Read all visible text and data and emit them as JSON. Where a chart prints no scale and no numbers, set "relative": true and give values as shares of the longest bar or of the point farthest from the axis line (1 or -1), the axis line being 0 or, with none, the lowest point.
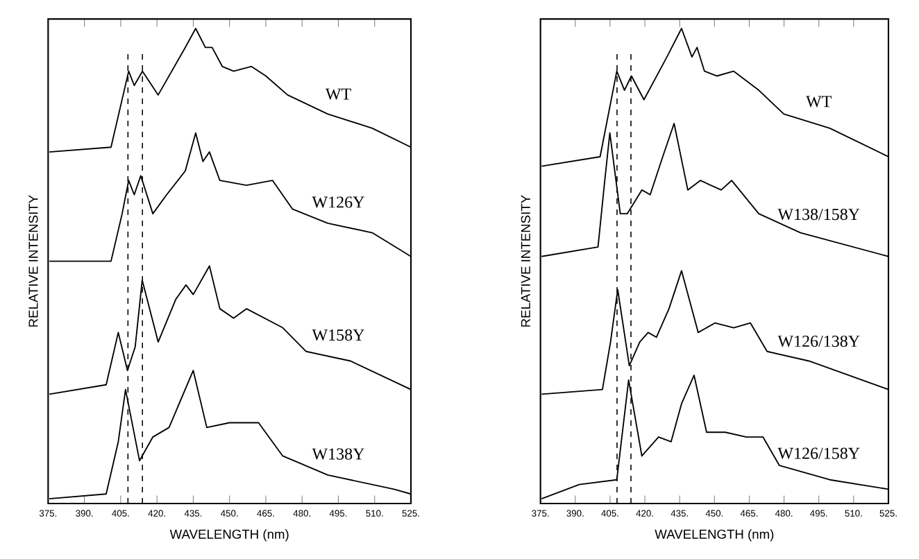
{
  "chart_data": [
    {
      "type": "line",
      "relative": true,
      "xlabel": "WAVELENGTH (nm)",
      "ylabel": "RELATIVE INTENSITY",
      "marker": "none",
      "line_style": "solid",
      "xlim": [
        375,
        525
      ],
      "xticks": [
        {
          "value": 375,
          "label": "375."
        },
        {
          "value": 390,
          "label": "390."
        },
        {
          "value": 405,
          "label": "405."
        },
        {
          "value": 420,
          "label": "420."
        },
        {
          "value": 435,
          "label": "435."
        },
        {
          "value": 450,
          "label": "450."
        },
        {
          "value": 465,
          "label": "465."
        },
        {
          "value": 480,
          "label": "480."
        },
        {
          "value": 495,
          "label": "495."
        },
        {
          "value": 510,
          "label": "510."
        },
        {
          "value": 525,
          "label": "525."
        }
      ],
      "ref_lines": [
        {
          "axis": "x",
          "value": 408,
          "line_style": "dashed"
        },
        {
          "axis": "x",
          "value": 414,
          "line_style": "dashed"
        }
      ],
      "series": [
        {
          "name": "WT",
          "color": "#000000",
          "x": [
            375.5,
            401,
            408.3,
            410.6,
            414,
            420.5,
            431.7,
            436,
            440,
            442.8,
            447,
            451.7,
            459,
            465,
            474,
            490.6,
            509,
            525
          ],
          "values": [
            0.74,
            0.75,
            0.91,
            0.88,
            0.91,
            0.86,
            0.96,
            1.0,
            0.96,
            0.96,
            0.92,
            0.91,
            0.92,
            0.9,
            0.86,
            0.82,
            0.79,
            0.75
          ]
        },
        {
          "name": "W126Y",
          "color": "#000000",
          "x": [
            375.5,
            401,
            405.6,
            408.3,
            410.6,
            413.3,
            418.3,
            424,
            431.7,
            436,
            439,
            441.7,
            446,
            457,
            467.8,
            476,
            490.6,
            509,
            525
          ],
          "values": [
            0.51,
            0.51,
            0.61,
            0.68,
            0.65,
            0.69,
            0.61,
            0.65,
            0.7,
            0.78,
            0.72,
            0.74,
            0.68,
            0.67,
            0.68,
            0.62,
            0.59,
            0.57,
            0.52
          ]
        },
        {
          "name": "W158Y",
          "color": "#000000",
          "x": [
            375.5,
            399,
            404,
            407.8,
            411,
            413.9,
            420.5,
            427.8,
            432,
            435,
            441.7,
            446,
            451.7,
            457,
            472,
            481.7,
            500,
            525
          ],
          "values": [
            0.23,
            0.25,
            0.36,
            0.28,
            0.33,
            0.47,
            0.34,
            0.43,
            0.46,
            0.44,
            0.5,
            0.41,
            0.39,
            0.41,
            0.37,
            0.32,
            0.3,
            0.24
          ]
        },
        {
          "name": "W138Y",
          "color": "#000000",
          "x": [
            375.5,
            399,
            404,
            407,
            412.8,
            418.3,
            425,
            435,
            440.6,
            450,
            462,
            472,
            490.6,
            518,
            525
          ],
          "values": [
            0.01,
            0.02,
            0.13,
            0.24,
            0.09,
            0.14,
            0.16,
            0.28,
            0.16,
            0.17,
            0.17,
            0.1,
            0.06,
            0.03,
            0.02
          ]
        }
      ]
    },
    {
      "type": "line",
      "relative": true,
      "xlabel": "WAVELENGTH (nm)",
      "ylabel": "RELATIVE INTENSITY",
      "marker": "none",
      "line_style": "solid",
      "xlim": [
        375,
        525
      ],
      "xticks": [
        {
          "value": 375,
          "label": "375."
        },
        {
          "value": 390,
          "label": "390."
        },
        {
          "value": 405,
          "label": "405."
        },
        {
          "value": 420,
          "label": "420."
        },
        {
          "value": 435,
          "label": "435."
        },
        {
          "value": 450,
          "label": "450."
        },
        {
          "value": 465,
          "label": "465."
        },
        {
          "value": 480,
          "label": "480."
        },
        {
          "value": 495,
          "label": "495."
        },
        {
          "value": 510,
          "label": "510."
        },
        {
          "value": 525,
          "label": "525."
        }
      ],
      "ref_lines": [
        {
          "axis": "x",
          "value": 408,
          "line_style": "dashed"
        },
        {
          "axis": "x",
          "value": 414,
          "line_style": "dashed"
        }
      ],
      "series": [
        {
          "name": "WT",
          "color": "#000000",
          "x": [
            375.5,
            400.7,
            407.9,
            411.2,
            414.2,
            419.6,
            429.5,
            435.8,
            440.3,
            442.5,
            445.7,
            451.1,
            458.3,
            469.1,
            479.9,
            499.7,
            525
          ],
          "values": [
            0.71,
            0.73,
            0.91,
            0.87,
            0.9,
            0.85,
            0.94,
            1.0,
            0.94,
            0.96,
            0.91,
            0.9,
            0.91,
            0.87,
            0.82,
            0.79,
            0.73
          ]
        },
        {
          "name": "W138/158Y",
          "color": "#000000",
          "x": [
            375.5,
            399.8,
            402.5,
            404.9,
            409.4,
            412.4,
            418.7,
            422.3,
            427.7,
            432.6,
            438.5,
            443.9,
            452.9,
            457.4,
            469.1,
            487.1,
            525
          ],
          "values": [
            0.52,
            0.54,
            0.67,
            0.78,
            0.61,
            0.61,
            0.66,
            0.65,
            0.73,
            0.8,
            0.66,
            0.68,
            0.66,
            0.68,
            0.61,
            0.57,
            0.52
          ]
        },
        {
          "name": "W126/138Y",
          "color": "#000000",
          "x": [
            375.5,
            401.7,
            405.2,
            408.3,
            413.3,
            417.8,
            421.4,
            425,
            430.4,
            435.8,
            443,
            450.2,
            458.3,
            465.5,
            472.7,
            490.7,
            525
          ],
          "values": [
            0.23,
            0.24,
            0.34,
            0.45,
            0.29,
            0.34,
            0.36,
            0.35,
            0.41,
            0.49,
            0.36,
            0.38,
            0.37,
            0.38,
            0.32,
            0.3,
            0.24
          ]
        },
        {
          "name": "W126/158Y",
          "color": "#000000",
          "x": [
            375.5,
            391.7,
            407.9,
            413,
            418.7,
            425.9,
            431.3,
            435.8,
            441.2,
            446.6,
            454.7,
            463.7,
            470.9,
            478,
            499.7,
            525
          ],
          "values": [
            0.01,
            0.04,
            0.05,
            0.26,
            0.1,
            0.14,
            0.13,
            0.21,
            0.27,
            0.15,
            0.15,
            0.14,
            0.14,
            0.08,
            0.05,
            0.03
          ]
        }
      ]
    }
  ]
}
